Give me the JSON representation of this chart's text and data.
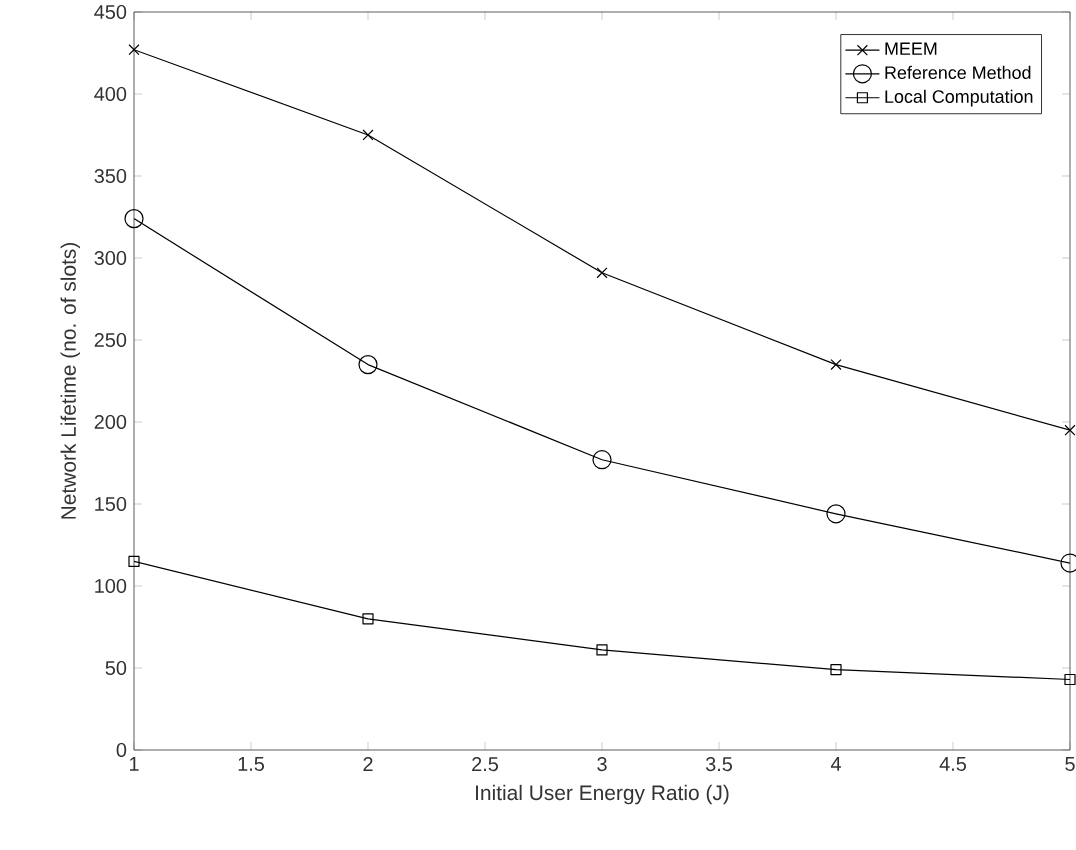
{
  "chart_data": {
    "type": "line",
    "xlabel": "Initial User Energy Ratio (J)",
    "ylabel": "Network Lifetime (no. of slots)",
    "x": [
      1,
      2,
      3,
      4,
      5
    ],
    "series": [
      {
        "name": "MEEM",
        "color": "#000000",
        "marker": "cross",
        "values": [
          427,
          375,
          291,
          235,
          195
        ]
      },
      {
        "name": "Reference Method",
        "color": "#000000",
        "marker": "circle",
        "values": [
          324,
          235,
          177,
          144,
          114
        ]
      },
      {
        "name": "Local Computation",
        "color": "#000000",
        "marker": "square",
        "values": [
          115,
          80,
          61,
          49,
          43
        ]
      }
    ],
    "xlim": [
      1,
      5
    ],
    "xticks": [
      1,
      1.5,
      2,
      2.5,
      3,
      3.5,
      4,
      4.5,
      5
    ],
    "ylim": [
      0,
      450
    ],
    "yticks": [
      0,
      50,
      100,
      150,
      200,
      250,
      300,
      350,
      400,
      450
    ],
    "grid": false,
    "legend": "top right",
    "line_style": "solid"
  }
}
